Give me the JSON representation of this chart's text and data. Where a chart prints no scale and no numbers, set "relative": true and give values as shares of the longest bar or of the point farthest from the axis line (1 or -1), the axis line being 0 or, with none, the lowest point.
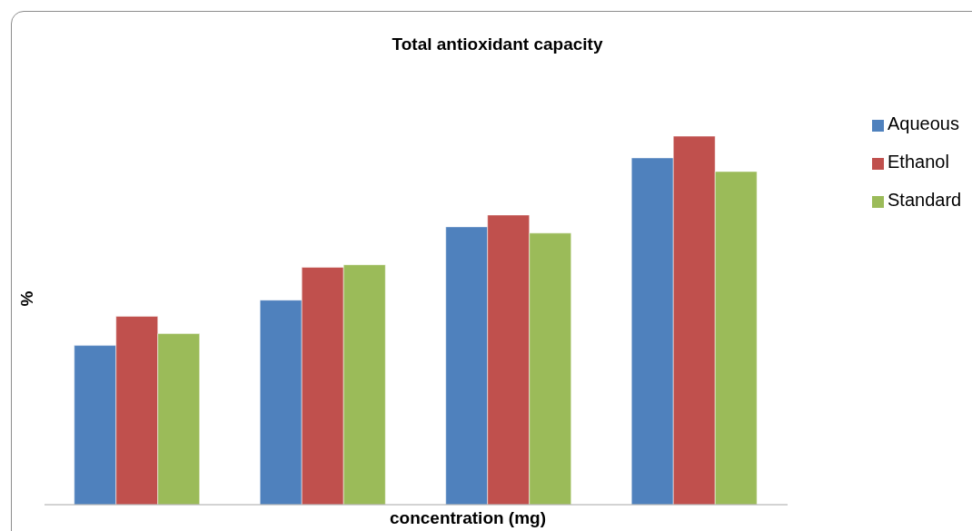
{
  "chart_data": {
    "type": "bar",
    "title": "Total antioxidant capacity",
    "xlabel": "concentration (mg)",
    "ylabel": "%",
    "relative": true,
    "categories": [
      null,
      null,
      null,
      null
    ],
    "series": [
      {
        "name": "Aqueous",
        "color": "#4f81bd",
        "values": [
          0.432,
          0.555,
          0.754,
          0.941
        ]
      },
      {
        "name": "Ethanol",
        "color": "#c0504d",
        "values": [
          0.511,
          0.644,
          0.786,
          1
        ]
      },
      {
        "name": "Standard",
        "color": "#9bbb59",
        "values": [
          0.464,
          0.651,
          0.737,
          0.904
        ]
      }
    ],
    "legend": "right",
    "grid": false
  }
}
